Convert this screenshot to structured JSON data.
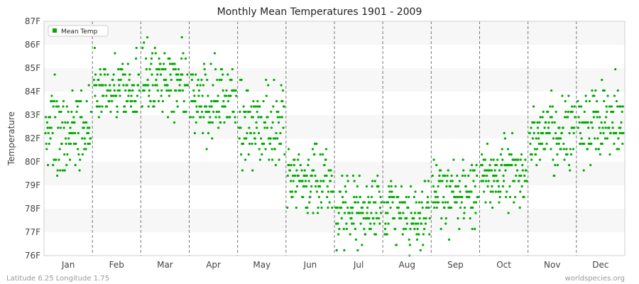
{
  "chart_data": {
    "type": "scatter",
    "title": "Monthly Mean Temperatures 1901 - 2009",
    "ylabel": "Temperature",
    "categories": [
      "Jan",
      "Feb",
      "Mar",
      "Apr",
      "May",
      "Jun",
      "Jul",
      "Aug",
      "Sep",
      "Oct",
      "Nov",
      "Dec"
    ],
    "y_tick_labels": [
      "76F",
      "77F",
      "78F",
      "79F",
      "80F",
      "82F",
      "83F",
      "84F",
      "85F",
      "86F",
      "87F"
    ],
    "grid": true,
    "legend": {
      "label": "Mean Temp",
      "placement": "top-left"
    },
    "series": [
      {
        "name": "Mean Temp",
        "color": "#00aa00",
        "month_stats": [
          {
            "month": "Jan",
            "mean": 81.9,
            "sd": 1.1,
            "min": 78.6,
            "max": 85.0
          },
          {
            "month": "Feb",
            "mean": 83.8,
            "sd": 0.8,
            "min": 82.5,
            "max": 86.1
          },
          {
            "month": "Mar",
            "mean": 84.2,
            "sd": 0.9,
            "min": 81.8,
            "max": 86.6
          },
          {
            "month": "Apr",
            "mean": 83.5,
            "sd": 0.9,
            "min": 79.5,
            "max": 86.3
          },
          {
            "month": "May",
            "mean": 82.0,
            "sd": 1.0,
            "min": 79.2,
            "max": 84.5
          },
          {
            "month": "Jun",
            "mean": 79.5,
            "sd": 0.8,
            "min": 77.9,
            "max": 82.3
          },
          {
            "month": "Jul",
            "mean": 78.1,
            "sd": 0.8,
            "min": 76.2,
            "max": 79.8
          },
          {
            "month": "Aug",
            "mean": 77.9,
            "sd": 0.8,
            "min": 76.1,
            "max": 79.8
          },
          {
            "month": "Sep",
            "mean": 78.9,
            "sd": 0.8,
            "min": 76.7,
            "max": 80.5
          },
          {
            "month": "Oct",
            "mean": 79.8,
            "sd": 0.8,
            "min": 77.9,
            "max": 83.0
          },
          {
            "month": "Nov",
            "mean": 81.8,
            "sd": 0.9,
            "min": 78.6,
            "max": 84.5
          },
          {
            "month": "Dec",
            "mean": 82.1,
            "sd": 0.9,
            "min": 78.4,
            "max": 84.8
          }
        ]
      }
    ],
    "footer_left": "Latitude 6.25 Longitude 1.75",
    "footer_right": "worldspecies.org"
  }
}
